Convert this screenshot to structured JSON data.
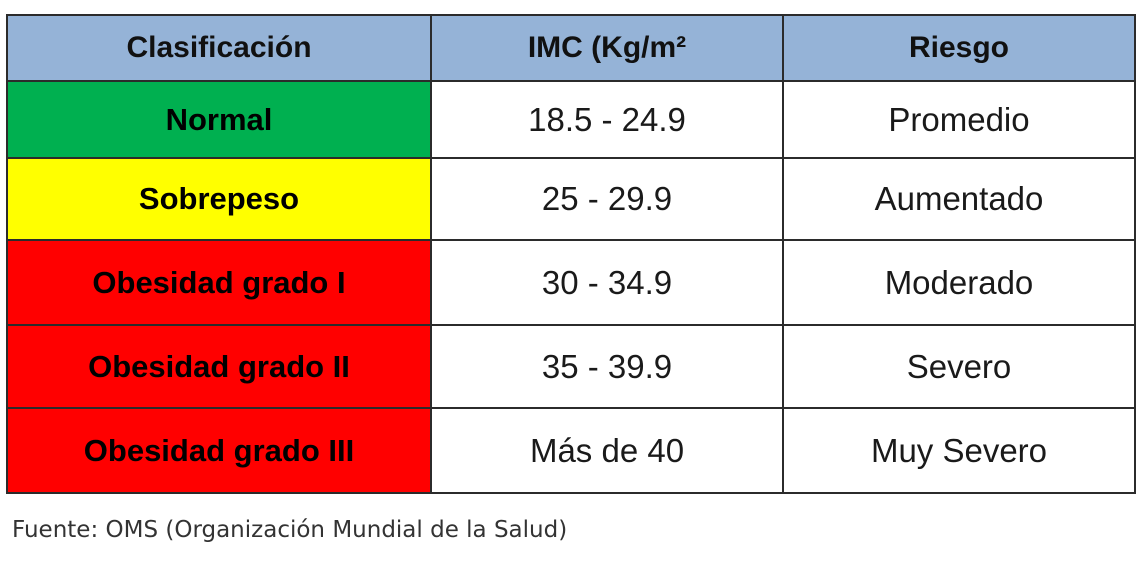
{
  "table": {
    "header_bg": "#95b3d7",
    "headers": [
      "Clasificación",
      "IMC (Kg/m²",
      "Riesgo"
    ],
    "rows": [
      {
        "classification": "Normal",
        "bmi": "18.5 - 24.9",
        "risk": "Promedio",
        "color": "#00b050"
      },
      {
        "classification": "Sobrepeso",
        "bmi": "25 - 29.9",
        "risk": "Aumentado",
        "color": "#ffff00"
      },
      {
        "classification": "Obesidad grado I",
        "bmi": "30 - 34.9",
        "risk": "Moderado",
        "color": "#ff0000"
      },
      {
        "classification": "Obesidad grado II",
        "bmi": "35 - 39.9",
        "risk": "Severo",
        "color": "#ff0000"
      },
      {
        "classification": "Obesidad grado III",
        "bmi": "Más de 40",
        "risk": "Muy Severo",
        "color": "#ff0000"
      }
    ]
  },
  "footer": {
    "source": "Fuente: OMS (Organización Mundial de la Salud)"
  }
}
